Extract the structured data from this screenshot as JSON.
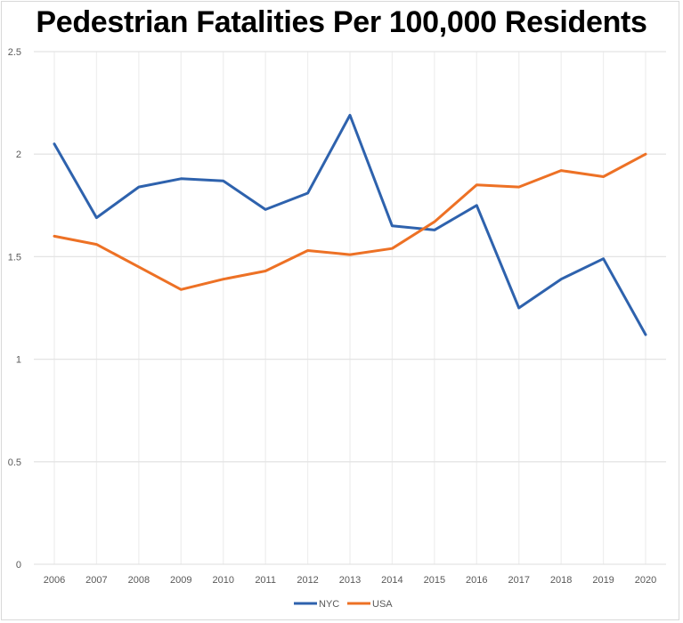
{
  "chart_data": {
    "type": "line",
    "title": "Pedestrian Fatalities Per 100,000 Residents",
    "xlabel": "",
    "ylabel": "",
    "x": [
      "2006",
      "2007",
      "2008",
      "2009",
      "2010",
      "2011",
      "2012",
      "2013",
      "2014",
      "2015",
      "2016",
      "2017",
      "2018",
      "2019",
      "2020"
    ],
    "ylim": [
      0,
      2.5
    ],
    "yticks": [
      "0",
      "0.5",
      "1",
      "1.5",
      "2",
      "2.5"
    ],
    "ytick_values": [
      0,
      0.5,
      1,
      1.5,
      2,
      2.5
    ],
    "grid": "both",
    "legend_position": "bottom",
    "series": [
      {
        "name": "NYC",
        "color": "#2e62ad",
        "values": [
          2.05,
          1.69,
          1.84,
          1.88,
          1.87,
          1.73,
          1.81,
          2.19,
          1.65,
          1.63,
          1.75,
          1.25,
          1.39,
          1.49,
          1.12
        ]
      },
      {
        "name": "USA",
        "color": "#ed7125",
        "values": [
          1.6,
          1.56,
          1.45,
          1.34,
          1.39,
          1.43,
          1.53,
          1.51,
          1.54,
          1.67,
          1.85,
          1.84,
          1.92,
          1.89,
          2.0
        ]
      }
    ]
  }
}
